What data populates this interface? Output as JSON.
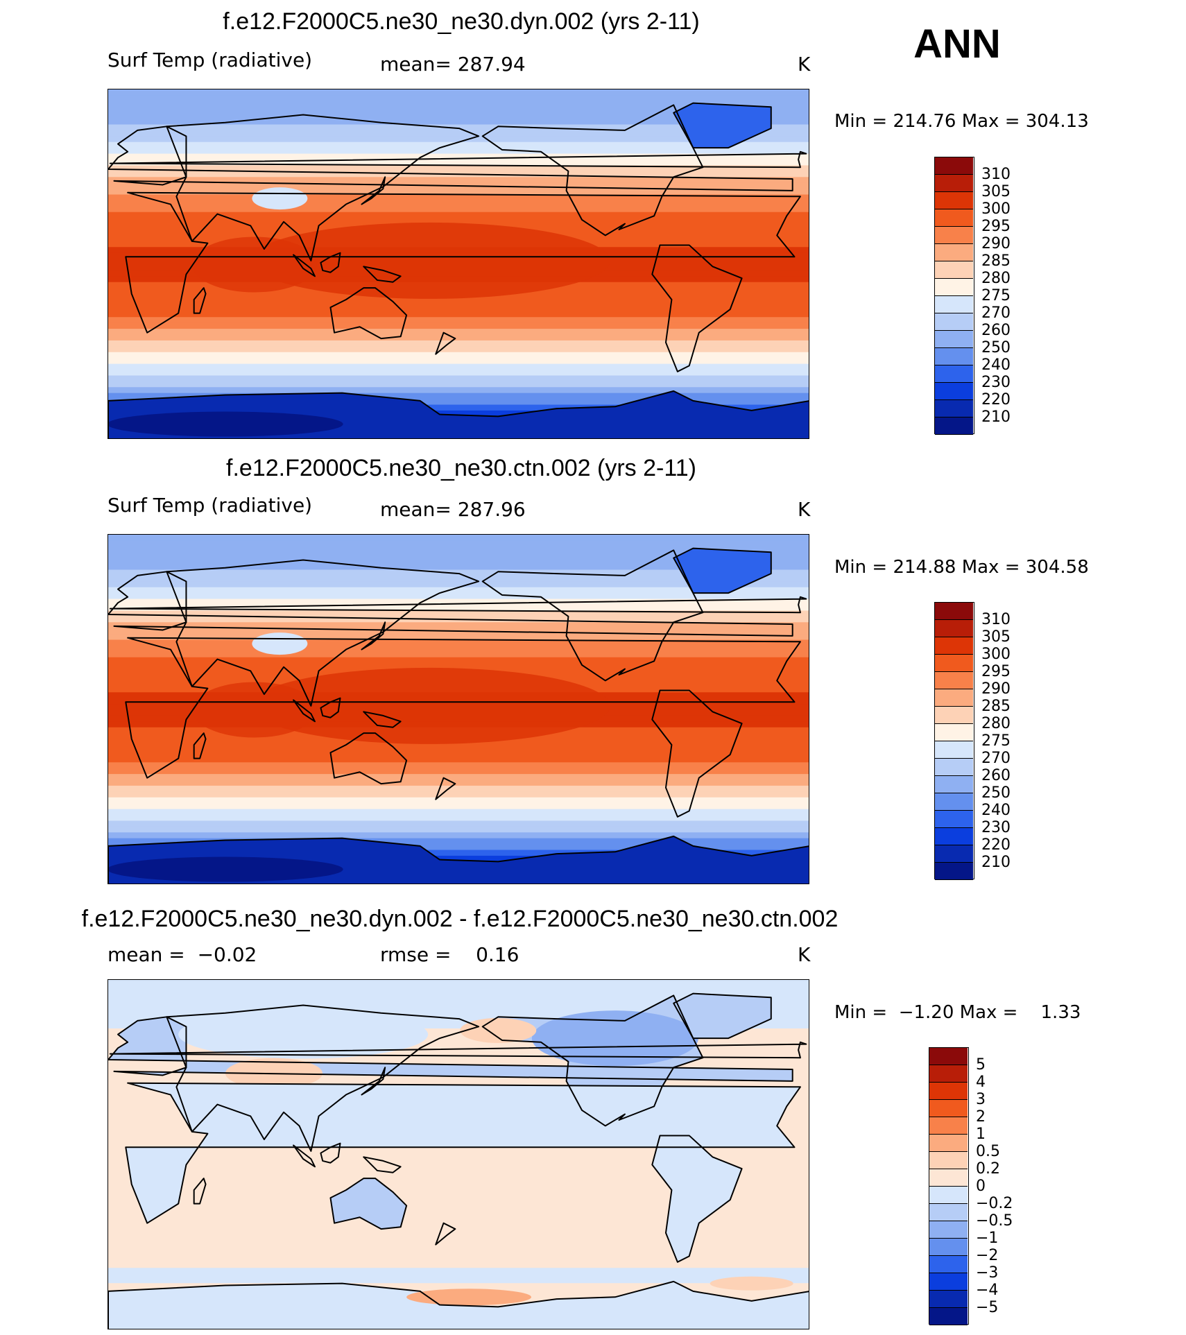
{
  "season": "ANN",
  "panels": [
    {
      "title": "f.e12.F2000C5.ne30_ne30.dyn.002 (yrs 2-11)",
      "left": "Surf Temp (radiative)",
      "center": "mean= 287.94",
      "right": "K",
      "minmax": "Min = 214.76 Max = 304.13",
      "kind": "abs"
    },
    {
      "title": "f.e12.F2000C5.ne30_ne30.ctn.002 (yrs 2-11)",
      "left": "Surf Temp (radiative)",
      "center": "mean= 287.96",
      "right": "K",
      "minmax": "Min = 214.88 Max = 304.58",
      "kind": "abs"
    },
    {
      "title": "f.e12.F2000C5.ne30_ne30.dyn.002 - f.e12.F2000C5.ne30_ne30.ctn.002",
      "left": "mean =  −0.02",
      "center": "rmse =    0.16",
      "right": "K",
      "minmax": "Min =  −1.20 Max =    1.33",
      "kind": "diff"
    }
  ],
  "chart_data": [
    {
      "type": "heatmap",
      "title": "f.e12.F2000C5.ne30_ne30.dyn.002 (yrs 2-11)",
      "variable": "Surf Temp (radiative)",
      "units": "K",
      "mean": 287.94,
      "min": 214.76,
      "max": 304.13,
      "colorbar_levels": [
        "310",
        "305",
        "300",
        "295",
        "290",
        "285",
        "280",
        "275",
        "270",
        "260",
        "250",
        "240",
        "230",
        "220",
        "210"
      ],
      "colorbar_colors": [
        "#8b0a0a",
        "#b81e08",
        "#dd3506",
        "#f05a1e",
        "#f8814a",
        "#fbab7f",
        "#fdd2b6",
        "#fff3e6",
        "#d6e6fb",
        "#b6cdf6",
        "#8fb0f2",
        "#6490ee",
        "#2d63ec",
        "#0b3ede",
        "#082ab0",
        "#041688"
      ],
      "zonal_profile": {
        "lat": [
          -90,
          -75,
          -65,
          -55,
          -45,
          -35,
          -25,
          -10,
          0,
          10,
          25,
          35,
          45,
          55,
          65,
          75,
          90
        ],
        "value": [
          218,
          228,
          255,
          272,
          281,
          289,
          296,
          300,
          301,
          300,
          297,
          291,
          284,
          277,
          268,
          258,
          250
        ]
      }
    },
    {
      "type": "heatmap",
      "title": "f.e12.F2000C5.ne30_ne30.ctn.002 (yrs 2-11)",
      "variable": "Surf Temp (radiative)",
      "units": "K",
      "mean": 287.96,
      "min": 214.88,
      "max": 304.58,
      "colorbar_levels": [
        "310",
        "305",
        "300",
        "295",
        "290",
        "285",
        "280",
        "275",
        "270",
        "260",
        "250",
        "240",
        "230",
        "220",
        "210"
      ],
      "colorbar_colors": [
        "#8b0a0a",
        "#b81e08",
        "#dd3506",
        "#f05a1e",
        "#f8814a",
        "#fbab7f",
        "#fdd2b6",
        "#fff3e6",
        "#d6e6fb",
        "#b6cdf6",
        "#8fb0f2",
        "#6490ee",
        "#2d63ec",
        "#0b3ede",
        "#082ab0",
        "#041688"
      ],
      "zonal_profile": {
        "lat": [
          -90,
          -75,
          -65,
          -55,
          -45,
          -35,
          -25,
          -10,
          0,
          10,
          25,
          35,
          45,
          55,
          65,
          75,
          90
        ],
        "value": [
          218,
          228,
          255,
          272,
          281,
          289,
          296,
          300,
          301,
          300,
          297,
          291,
          284,
          277,
          268,
          258,
          250
        ]
      }
    },
    {
      "type": "heatmap",
      "title": "f.e12.F2000C5.ne30_ne30.dyn.002 - f.e12.F2000C5.ne30_ne30.ctn.002",
      "units": "K",
      "mean": -0.02,
      "rmse": 0.16,
      "min": -1.2,
      "max": 1.33,
      "colorbar_levels": [
        "5",
        "4",
        "3",
        "2",
        "1",
        "0.5",
        "0.2",
        "0",
        "−0.2",
        "−0.5",
        "−1",
        "−2",
        "−3",
        "−4",
        "−5"
      ],
      "colorbar_colors": [
        "#8b0a0a",
        "#b81e08",
        "#dd3506",
        "#f05a1e",
        "#f8814a",
        "#fbab7f",
        "#fdd2b6",
        "#fde6d5",
        "#d6e6fb",
        "#b6cdf6",
        "#8fb0f2",
        "#6490ee",
        "#2d63ec",
        "#0b3ede",
        "#082ab0",
        "#041688"
      ]
    }
  ]
}
